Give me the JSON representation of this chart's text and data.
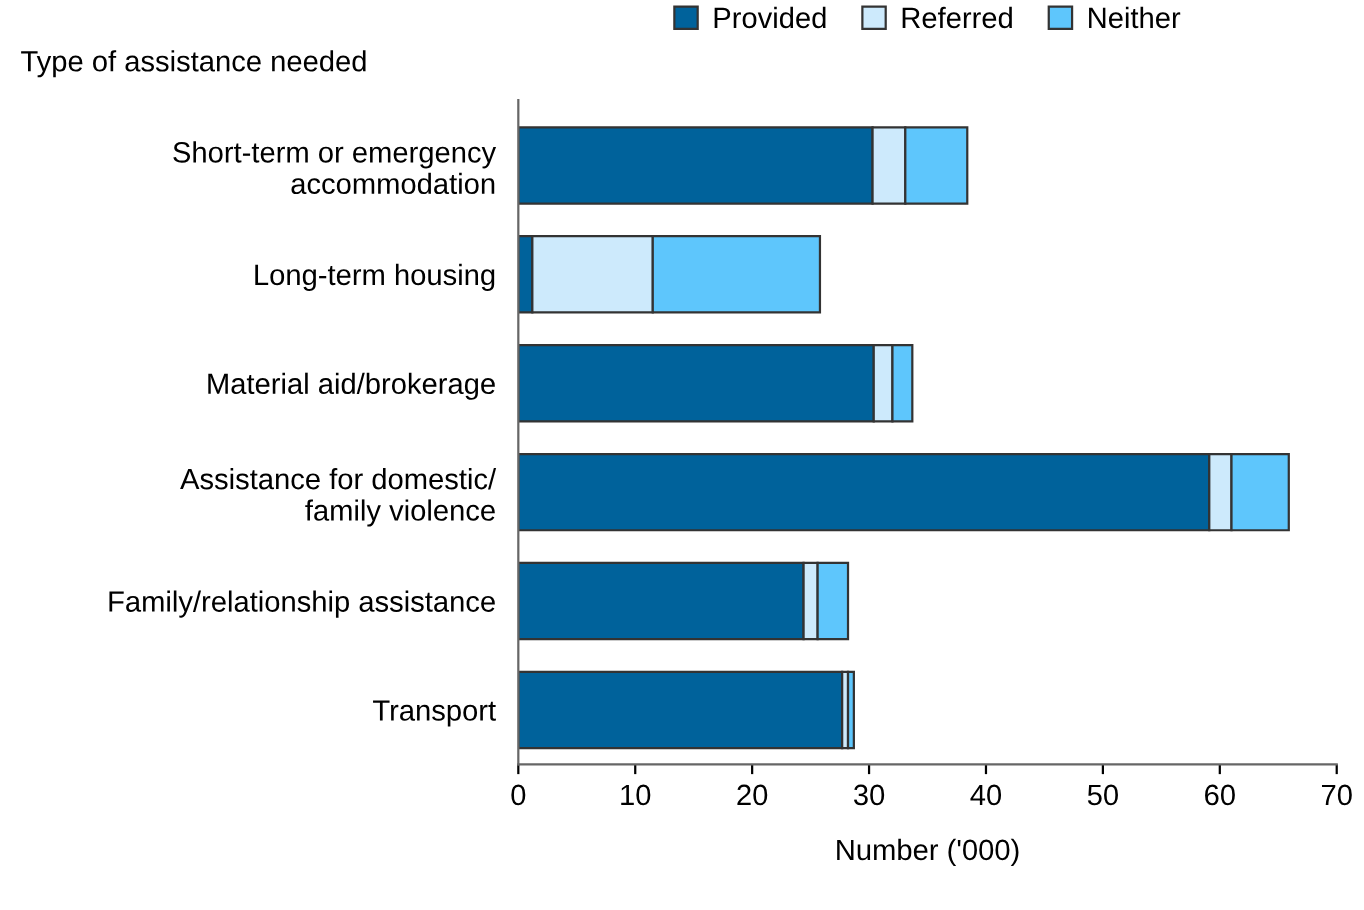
{
  "chart_data": {
    "type": "bar",
    "orientation": "horizontal",
    "stacked": true,
    "ylabel": "Type of assistance needed",
    "xlabel": "Number ('000)",
    "categories": [
      "Short-term or emergency\naccommodation",
      "Long-term housing",
      "Material aid/brokerage",
      "Assistance for domestic/\nfamily violence",
      "Family/relationship assistance",
      "Transport"
    ],
    "series": [
      {
        "name": "Provided",
        "color": "#00629b",
        "values": [
          30.3,
          1.2,
          30.4,
          59.1,
          24.4,
          27.7
        ]
      },
      {
        "name": "Referred",
        "color": "#cdeafc",
        "values": [
          2.8,
          10.3,
          1.6,
          1.9,
          1.2,
          0.5
        ]
      },
      {
        "name": "Neither",
        "color": "#5ec6fc",
        "values": [
          5.3,
          14.3,
          1.7,
          4.9,
          2.6,
          0.5
        ]
      }
    ],
    "xlim": [
      0,
      70
    ],
    "xticks": [
      0,
      10,
      20,
      30,
      40,
      50,
      60,
      70
    ],
    "grid": false,
    "legend": "top"
  }
}
